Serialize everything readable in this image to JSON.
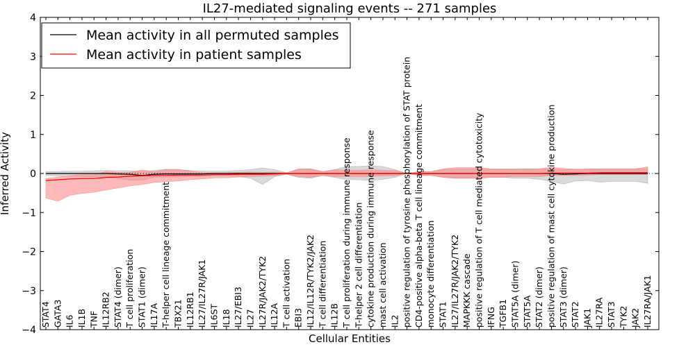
{
  "chart_data": {
    "type": "line",
    "title": "IL27-mediated signaling events -- 271 samples",
    "xlabel": "Cellular Entities",
    "ylabel": "Inferred Activity",
    "ylim": [
      -4,
      4
    ],
    "yticks": [
      -4,
      -3,
      -2,
      -1,
      0,
      1,
      2,
      3,
      4
    ],
    "ytick_labels": [
      "−4",
      "−3",
      "−2",
      "−1",
      "0",
      "1",
      "2",
      "3",
      "4"
    ],
    "grid": false,
    "legend_position": "top-left",
    "categories": [
      "STAT4",
      "GATA3",
      "IL6",
      "IL1B",
      "TNF",
      "IL12RB2",
      "STAT4 (dimer)",
      "T cell proliferation",
      "STAT1 (dimer)",
      "IL17A",
      "T-helper cell lineage commitment",
      "TBX21",
      "IL12RB1",
      "IL27/IL27R/JAK1",
      "IL6ST",
      "IL18",
      "IL27/EBI3",
      "IL27",
      "IL27R/JAK2/TYK2",
      "IL12A",
      "T cell activation",
      "EBI3",
      "IL12/IL12R/TYK2/JAK2",
      "T cell differentiation",
      "IL12B",
      "T cell proliferation during immune response",
      "T-helper 2 cell differentiation",
      "cytokine production during immune response",
      "mast cell activation",
      "IL2",
      "positive regulation of tyrosine phosphorylation of STAT protein",
      "CD4-positive alpha-beta T cell lineage commitment",
      "monocyte differentiation",
      "STAT1",
      "IL27/IL27R/JAK2/TYK2",
      "MAPKKK cascade",
      "positive regulation of T cell mediated cytotoxicity",
      "IFNG",
      "TGFB1",
      "STAT5A (dimer)",
      "STAT5A",
      "STAT2 (dimer)",
      "positive regulation of mast cell cytokine production",
      "STAT3 (dimer)",
      "STAT2",
      "JAK1",
      "IL27RA",
      "STAT3",
      "TYK2",
      "JAK2",
      "IL27RA/JAK1"
    ],
    "series": [
      {
        "name": "Mean activity in all permuted samples",
        "color": "#000000",
        "band_color": "#aaaaaa",
        "values": [
          0.0,
          0.0,
          0.0,
          0.0,
          0.0,
          0.0,
          -0.01,
          -0.02,
          -0.05,
          -0.02,
          -0.01,
          -0.01,
          -0.01,
          -0.01,
          0.0,
          0.0,
          0.0,
          0.0,
          0.0,
          0.0,
          0.0,
          0.0,
          0.0,
          0.0,
          0.0,
          0.0,
          0.0,
          0.0,
          0.0,
          0.0,
          0.0,
          0.0,
          0.0,
          0.0,
          0.0,
          0.0,
          0.0,
          0.0,
          0.0,
          0.0,
          0.0,
          0.0,
          0.0,
          -0.02,
          -0.01,
          0.0,
          0.0,
          0.0,
          0.0,
          0.0,
          0.0
        ],
        "band_upper": [
          0.05,
          0.05,
          0.06,
          0.06,
          0.07,
          0.08,
          0.08,
          0.09,
          0.1,
          0.1,
          0.12,
          0.1,
          0.09,
          0.07,
          0.06,
          0.06,
          0.08,
          0.1,
          0.14,
          0.1,
          0.02,
          0.1,
          0.12,
          0.05,
          0.1,
          0.18,
          0.18,
          0.2,
          0.18,
          0.1,
          0.0,
          0.05,
          0.05,
          0.1,
          0.12,
          0.12,
          0.12,
          0.1,
          0.1,
          0.1,
          0.12,
          0.12,
          0.12,
          0.12,
          0.12,
          0.12,
          0.12,
          0.12,
          0.12,
          0.12,
          0.12
        ],
        "band_lower": [
          -0.05,
          -0.06,
          -0.07,
          -0.08,
          -0.09,
          -0.1,
          -0.12,
          -0.15,
          -0.12,
          -0.08,
          -0.08,
          -0.08,
          -0.07,
          -0.07,
          -0.05,
          -0.05,
          -0.08,
          -0.12,
          -0.28,
          -0.08,
          -0.02,
          -0.1,
          -0.12,
          -0.05,
          -0.1,
          -0.16,
          -0.16,
          -0.18,
          -0.15,
          -0.1,
          0.0,
          -0.05,
          -0.05,
          -0.1,
          -0.12,
          -0.12,
          -0.12,
          -0.1,
          -0.1,
          -0.12,
          -0.12,
          -0.15,
          -0.2,
          -0.25,
          -0.18,
          -0.18,
          -0.22,
          -0.2,
          -0.2,
          -0.2,
          -0.25
        ]
      },
      {
        "name": "Mean activity in patient samples",
        "color": "#ff0000",
        "band_color": "#ff8080",
        "values": [
          -0.18,
          -0.16,
          -0.14,
          -0.13,
          -0.13,
          -0.1,
          -0.09,
          -0.07,
          -0.06,
          -0.05,
          -0.05,
          -0.04,
          -0.04,
          -0.04,
          -0.03,
          -0.03,
          -0.02,
          -0.02,
          -0.02,
          -0.01,
          0.0,
          0.0,
          0.0,
          0.0,
          0.0,
          0.0,
          0.0,
          0.0,
          0.0,
          0.0,
          0.0,
          0.0,
          0.0,
          0.0,
          0.0,
          0.0,
          0.0,
          0.0,
          0.0,
          0.0,
          0.0,
          0.0,
          0.01,
          0.01,
          0.01,
          0.01,
          0.02,
          0.02,
          0.02,
          0.02,
          0.02
        ],
        "band_upper": [
          0.05,
          0.07,
          0.08,
          0.1,
          0.1,
          0.15,
          0.12,
          0.1,
          0.15,
          0.1,
          0.15,
          0.15,
          0.1,
          0.06,
          0.05,
          0.05,
          0.05,
          0.06,
          0.05,
          0.05,
          0.02,
          0.12,
          0.12,
          0.05,
          0.1,
          0.08,
          0.08,
          0.1,
          0.08,
          0.08,
          0.0,
          0.05,
          0.05,
          0.12,
          0.15,
          0.15,
          0.15,
          0.12,
          0.12,
          0.12,
          0.12,
          0.12,
          0.15,
          0.12,
          0.1,
          0.1,
          0.1,
          0.1,
          0.1,
          0.1,
          0.15
        ],
        "band_lower": [
          -0.45,
          -0.55,
          -0.42,
          -0.38,
          -0.35,
          -0.32,
          -0.28,
          -0.25,
          -0.22,
          -0.18,
          -0.16,
          -0.15,
          -0.12,
          -0.1,
          -0.08,
          -0.08,
          -0.07,
          -0.06,
          -0.05,
          -0.05,
          -0.02,
          -0.08,
          -0.1,
          -0.05,
          -0.08,
          -0.08,
          -0.08,
          -0.08,
          -0.06,
          -0.06,
          0.0,
          -0.05,
          -0.05,
          -0.1,
          -0.12,
          -0.12,
          -0.12,
          -0.1,
          -0.1,
          -0.08,
          -0.08,
          -0.08,
          -0.06,
          -0.06,
          -0.06,
          -0.05,
          -0.05,
          -0.05,
          -0.05,
          -0.05,
          -0.05
        ]
      }
    ]
  }
}
